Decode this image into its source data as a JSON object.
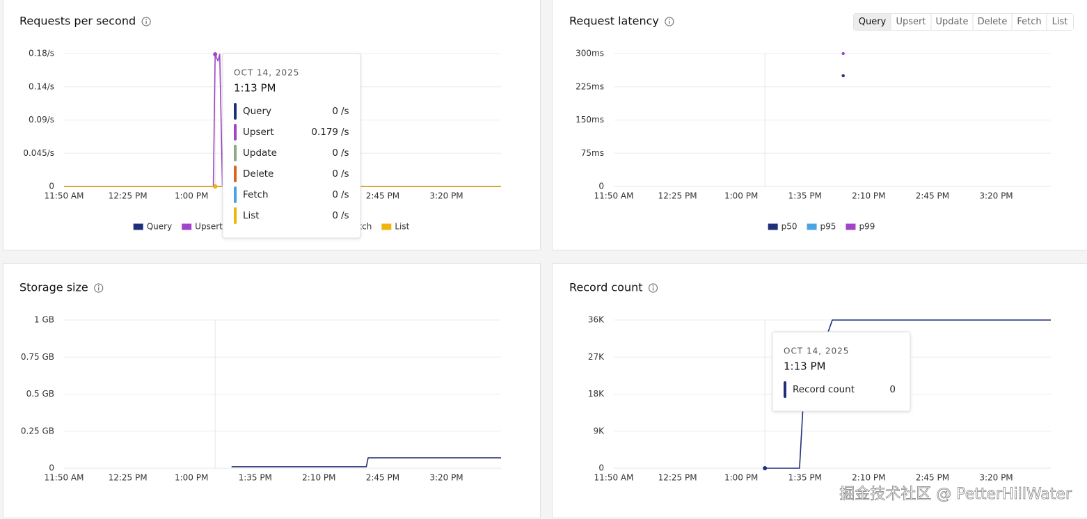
{
  "chart_data": [
    {
      "type": "line",
      "title": "Requests per second",
      "x": [
        710,
        792,
        793,
        794.5,
        795.5,
        797,
        950
      ],
      "series": [
        {
          "name": "Query",
          "color": "#1f2f7a",
          "values": [
            0,
            0,
            0,
            0,
            0,
            0,
            0
          ]
        },
        {
          "name": "Upsert",
          "color": "#a044c9",
          "values": [
            0,
            0,
            0.179,
            0.17,
            0.179,
            0,
            0
          ]
        },
        {
          "name": "Update",
          "color": "#8aab85",
          "values": [
            0,
            0,
            0,
            0,
            0,
            0,
            0
          ]
        },
        {
          "name": "Delete",
          "color": "#d9641e",
          "values": [
            0,
            0,
            0,
            0,
            0,
            0,
            0
          ]
        },
        {
          "name": "Fetch",
          "color": "#4ba3e3",
          "values": [
            0,
            0,
            0,
            0,
            0,
            0,
            0
          ]
        },
        {
          "name": "List",
          "color": "#f2b40c",
          "values": [
            0,
            0,
            0,
            0,
            0,
            0,
            0
          ]
        }
      ],
      "xlim": [
        710,
        950
      ],
      "xticks": [
        {
          "value": 710,
          "label": "11:50 AM"
        },
        {
          "value": 745,
          "label": "12:25 PM"
        },
        {
          "value": 780,
          "label": "1:00 PM"
        },
        {
          "value": 815,
          "label": "1:35 PM"
        },
        {
          "value": 850,
          "label": "2:10 PM"
        },
        {
          "value": 885,
          "label": "2:45 PM"
        },
        {
          "value": 920,
          "label": "3:20 PM"
        }
      ],
      "ylim": [
        0,
        0.18
      ],
      "yticks": [
        0,
        {
          "value": 0.045,
          "label": "0.045/s"
        },
        {
          "value": 0.09,
          "label": "0.09/s"
        },
        {
          "value": 0.135,
          "label": "0.14/s"
        },
        {
          "value": 0.18,
          "label": "0.18/s"
        }
      ],
      "grid": true,
      "legend": "bottom",
      "crosshair": 793,
      "tooltip": {
        "date": "OCT 14, 2025",
        "time": "1:13 PM",
        "unit": "/s"
      }
    },
    {
      "type": "line",
      "title": "Request latency",
      "x": [
        836
      ],
      "series": [
        {
          "name": "p50",
          "color": "#1f2f7a",
          "values": [
            250
          ]
        },
        {
          "name": "p95",
          "color": "#4ba3e3",
          "values": [
            null
          ]
        },
        {
          "name": "p99",
          "color": "#a044c9",
          "values": [
            300
          ]
        }
      ],
      "xlim": [
        710,
        950
      ],
      "xticks": [
        {
          "value": 710,
          "label": "11:50 AM"
        },
        {
          "value": 745,
          "label": "12:25 PM"
        },
        {
          "value": 780,
          "label": "1:00 PM"
        },
        {
          "value": 815,
          "label": "1:35 PM"
        },
        {
          "value": 850,
          "label": "2:10 PM"
        },
        {
          "value": 885,
          "label": "2:45 PM"
        },
        {
          "value": 920,
          "label": "3:20 PM"
        }
      ],
      "ylim": [
        0,
        300
      ],
      "yticks": [
        0,
        {
          "value": 75,
          "label": "75ms"
        },
        {
          "value": 150,
          "label": "150ms"
        },
        {
          "value": 225,
          "label": "225ms"
        },
        {
          "value": 300,
          "label": "300ms"
        }
      ],
      "grid": true,
      "legend": "bottom",
      "crosshair": 793
    },
    {
      "type": "line",
      "title": "Storage size",
      "x": [
        802,
        876,
        877,
        950
      ],
      "series": [
        {
          "color": "#1f2f7a",
          "values": [
            0.01,
            0.01,
            0.07,
            0.07
          ]
        }
      ],
      "xlim": [
        710,
        950
      ],
      "xticks": [
        {
          "value": 710,
          "label": "11:50 AM"
        },
        {
          "value": 745,
          "label": "12:25 PM"
        },
        {
          "value": 780,
          "label": "1:00 PM"
        },
        {
          "value": 815,
          "label": "1:35 PM"
        },
        {
          "value": 850,
          "label": "2:10 PM"
        },
        {
          "value": 885,
          "label": "2:45 PM"
        },
        {
          "value": 920,
          "label": "3:20 PM"
        }
      ],
      "ylim": [
        0,
        1
      ],
      "yticks": [
        0,
        {
          "value": 0.25,
          "label": "0.25 GB"
        },
        {
          "value": 0.5,
          "label": "0.5 GB"
        },
        {
          "value": 0.75,
          "label": "0.75 GB"
        },
        {
          "value": 1,
          "label": "1 GB"
        }
      ],
      "grid": true,
      "crosshair": 793
    },
    {
      "type": "line",
      "title": "Record count",
      "x": [
        793,
        812,
        814,
        830,
        950
      ],
      "series": [
        {
          "name": "Record count",
          "color": "#1f2f7a",
          "values": [
            0,
            0,
            15600,
            36000,
            36000
          ]
        }
      ],
      "xlim": [
        710,
        950
      ],
      "xticks": [
        {
          "value": 710,
          "label": "11:50 AM"
        },
        {
          "value": 745,
          "label": "12:25 PM"
        },
        {
          "value": 780,
          "label": "1:00 PM"
        },
        {
          "value": 815,
          "label": "1:35 PM"
        },
        {
          "value": 850,
          "label": "2:10 PM"
        },
        {
          "value": 885,
          "label": "2:45 PM"
        },
        {
          "value": 920,
          "label": "3:20 PM"
        }
      ],
      "ylim": [
        0,
        36000
      ],
      "yticks": [
        0,
        {
          "value": 9000,
          "label": "9K"
        },
        {
          "value": 18000,
          "label": "18K"
        },
        {
          "value": 27000,
          "label": "27K"
        },
        {
          "value": 36000,
          "label": "36K"
        }
      ],
      "grid": true,
      "crosshair": 793,
      "tooltip": {
        "date": "OCT 14, 2025",
        "time": "1:13 PM"
      }
    }
  ],
  "tabs": [
    {
      "label": "Query",
      "active": true
    },
    {
      "label": "Upsert"
    },
    {
      "label": "Update"
    },
    {
      "label": "Delete"
    },
    {
      "label": "Fetch"
    },
    {
      "label": "List"
    }
  ],
  "watermark": "掘金技术社区 @ PetterHillWater"
}
